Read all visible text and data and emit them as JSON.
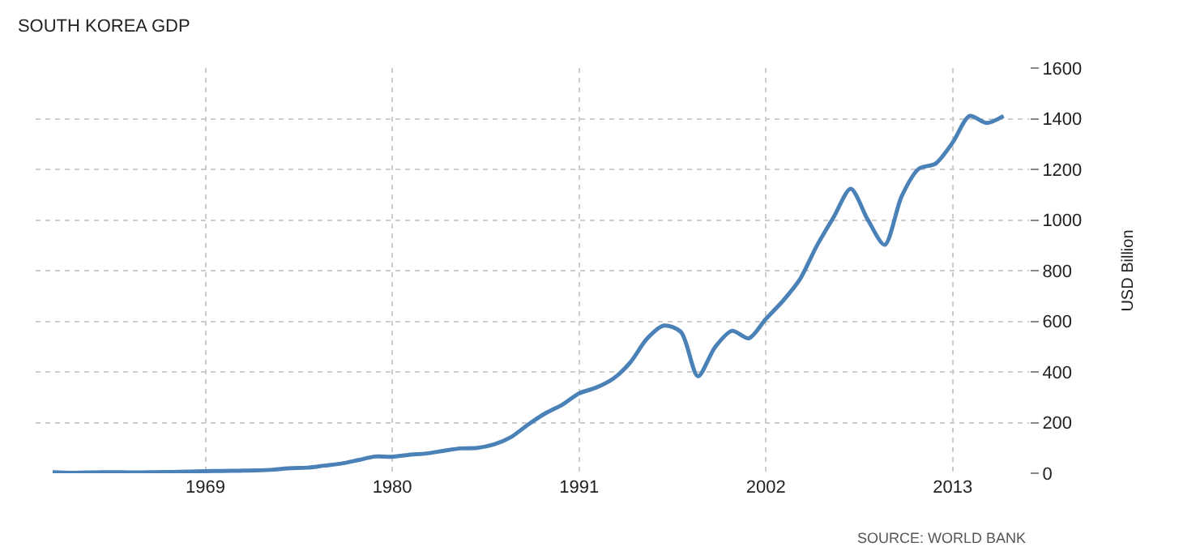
{
  "chart_data": {
    "type": "line",
    "title": "SOUTH KOREA GDP",
    "ylabel": "USD Billion",
    "annotations": [
      "SOURCE: WORLD BANK"
    ],
    "x": [
      1960,
      1961,
      1962,
      1963,
      1964,
      1965,
      1966,
      1967,
      1968,
      1969,
      1970,
      1971,
      1972,
      1973,
      1974,
      1975,
      1976,
      1977,
      1978,
      1979,
      1980,
      1981,
      1982,
      1983,
      1984,
      1985,
      1986,
      1987,
      1988,
      1989,
      1990,
      1991,
      1992,
      1993,
      1994,
      1995,
      1996,
      1997,
      1998,
      1999,
      2000,
      2001,
      2002,
      2003,
      2004,
      2005,
      2006,
      2007,
      2008,
      2009,
      2010,
      2011,
      2012,
      2013,
      2014,
      2015,
      2016
    ],
    "series": [
      {
        "color": "#4a82b8",
        "values": [
          4,
          2,
          3,
          4,
          4,
          3,
          4,
          5,
          6,
          8,
          9,
          10,
          11,
          14,
          20,
          22,
          30,
          38,
          52,
          66,
          65,
          73,
          78,
          88,
          98,
          100,
          114,
          143,
          192,
          236,
          270,
          315,
          338,
          373,
          436,
          531,
          583,
          558,
          383,
          497,
          562,
          533,
          609,
          680,
          765,
          898,
          1012,
          1123,
          1002,
          902,
          1094,
          1202,
          1223,
          1306,
          1411,
          1383,
          1411
        ]
      }
    ],
    "xlim": [
      1959,
      2017.5
    ],
    "xticks": [
      1969,
      1980,
      1991,
      2002,
      2013
    ],
    "ylim": [
      0,
      1600
    ],
    "yticks": [
      0,
      200,
      400,
      600,
      800,
      1000,
      1200,
      1400,
      1600
    ],
    "grid": true,
    "marker": "none",
    "line_style": "solid"
  }
}
